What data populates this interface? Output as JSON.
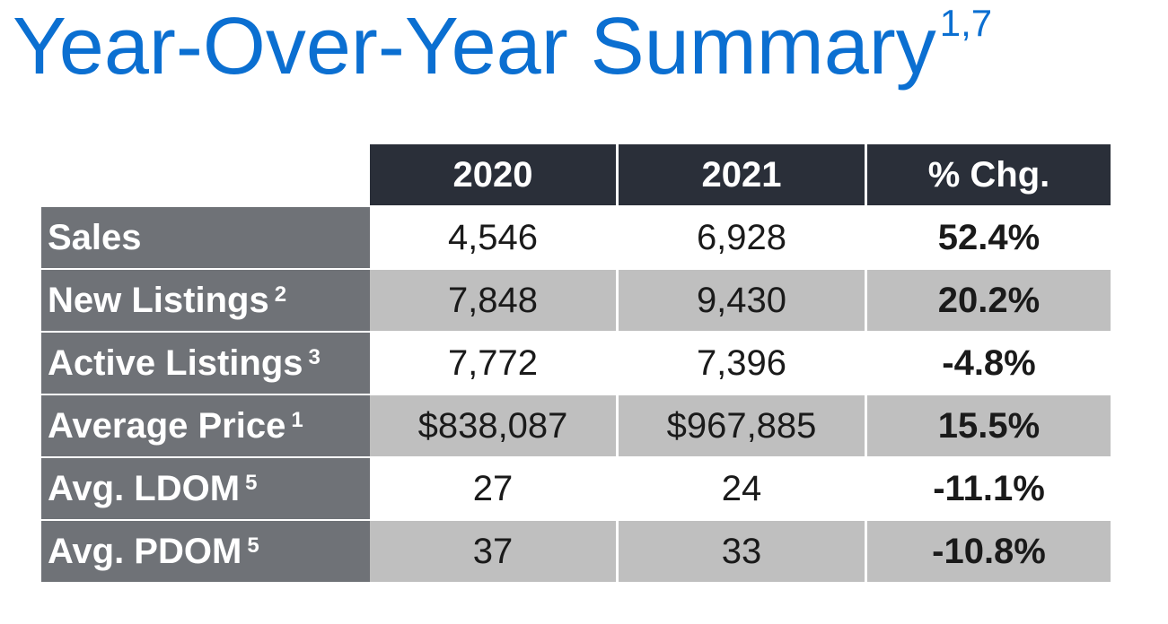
{
  "title": {
    "text": "Year-Over-Year Summary",
    "superscript": "1,7"
  },
  "colors": {
    "title": "#0b6fd1",
    "header_bg": "#2a2f39",
    "label_bg": "#6f7277",
    "alt_row_bg": "#bfbfbf"
  },
  "chart_data": {
    "type": "table",
    "columns": [
      "2020",
      "2021",
      "% Chg."
    ],
    "rows": [
      {
        "label": "Sales",
        "sup": "",
        "values": [
          "4,546",
          "6,928",
          "52.4%"
        ]
      },
      {
        "label": "New Listings",
        "sup": "2",
        "values": [
          "7,848",
          "9,430",
          "20.2%"
        ]
      },
      {
        "label": "Active Listings",
        "sup": "3",
        "values": [
          "7,772",
          "7,396",
          "-4.8%"
        ]
      },
      {
        "label": "Average Price",
        "sup": "1",
        "values": [
          "$838,087",
          "$967,885",
          "15.5%"
        ]
      },
      {
        "label": "Avg. LDOM",
        "sup": "5",
        "values": [
          "27",
          "24",
          "-11.1%"
        ]
      },
      {
        "label": "Avg. PDOM",
        "sup": "5",
        "values": [
          "37",
          "33",
          "-10.8%"
        ]
      }
    ]
  }
}
